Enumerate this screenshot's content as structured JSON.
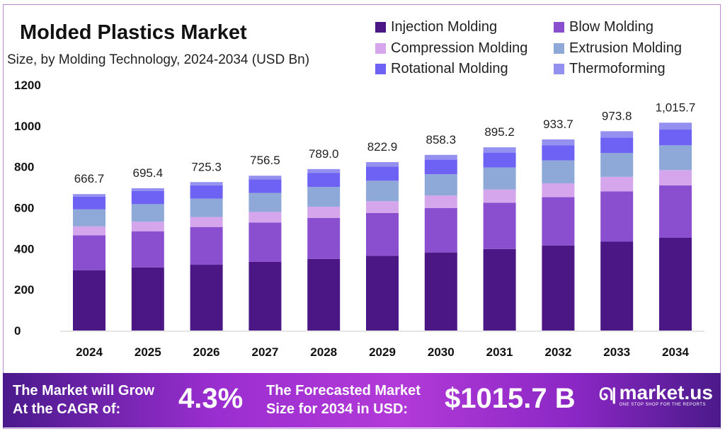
{
  "chart_data": {
    "type": "bar",
    "stacked": true,
    "title": "Molded Plastics Market",
    "subtitle": "Size, by Molding Technology, 2024-2034 (USD Bn)",
    "categories": [
      "2024",
      "2025",
      "2026",
      "2027",
      "2028",
      "2029",
      "2030",
      "2031",
      "2032",
      "2033",
      "2034"
    ],
    "totals": [
      "666.7",
      "695.4",
      "725.3",
      "756.5",
      "789.0",
      "822.9",
      "858.3",
      "895.2",
      "933.7",
      "973.8",
      "1,015.7"
    ],
    "series": [
      {
        "name": "Injection Molding",
        "color": "#4b1784",
        "values": [
          295.0,
          308.0,
          321.5,
          335.6,
          350.2,
          365.6,
          381.6,
          398.3,
          415.8,
          434.0,
          453.0
        ]
      },
      {
        "name": "Blow Molding",
        "color": "#8a4fcf",
        "values": [
          170.0,
          177.1,
          184.5,
          192.2,
          200.2,
          208.6,
          217.3,
          226.4,
          235.9,
          245.7,
          256.0
        ]
      },
      {
        "name": "Compression Molding",
        "color": "#d5a6ec",
        "values": [
          44.0,
          46.5,
          49.0,
          51.7,
          54.6,
          57.6,
          60.8,
          64.1,
          67.6,
          71.3,
          75.0
        ]
      },
      {
        "name": "Extrusion Molding",
        "color": "#8ea8d8",
        "values": [
          83.0,
          86.2,
          89.5,
          92.9,
          96.5,
          100.2,
          104.0,
          108.0,
          112.1,
          116.4,
          121.0
        ]
      },
      {
        "name": "Rotational Molding",
        "color": "#6d62f4",
        "values": [
          62.0,
          63.5,
          65.0,
          66.5,
          68.0,
          69.5,
          71.1,
          72.6,
          74.1,
          75.7,
          77.0
        ]
      },
      {
        "name": "Thermoforming",
        "color": "#9490f0",
        "values": [
          12.7,
          14.1,
          15.8,
          17.6,
          19.5,
          21.4,
          23.5,
          25.8,
          28.2,
          30.7,
          33.7
        ]
      }
    ],
    "yticks": [
      "0",
      "200",
      "400",
      "600",
      "800",
      "1000",
      "1200"
    ],
    "ylim": [
      0,
      1200
    ],
    "grid": false,
    "legend_position": "top-right"
  },
  "banner": {
    "cagr_label_1": "The Market will Grow",
    "cagr_label_2": "At the CAGR of:",
    "cagr_value": "4.3%",
    "forecast_label_1": "The Forecasted Market",
    "forecast_label_2": "Size for 2034 in USD:",
    "forecast_value": "$1015.7 B",
    "logo_text": "market.us",
    "logo_tagline": "ONE STOP SHOP FOR THE REPORTS"
  }
}
